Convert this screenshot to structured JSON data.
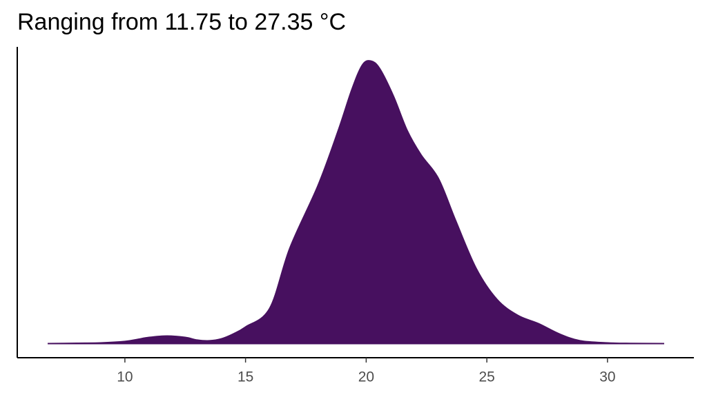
{
  "chart_data": {
    "type": "density",
    "title": "Ranging from 11.75 to 27.35 °C",
    "x": [
      6.8,
      8,
      9,
      10,
      10.5,
      11,
      11.75,
      12.5,
      13,
      13.5,
      14,
      14.5,
      15,
      16,
      16.84,
      18,
      18.84,
      19.41,
      19.84,
      20.19,
      20.56,
      21.13,
      21.7,
      22.27,
      23,
      23.7,
      24.56,
      25.42,
      26.28,
      27.14,
      28,
      28.86,
      30,
      31,
      32.35
    ],
    "values": [
      0,
      0.0002,
      0.0004,
      0.0012,
      0.0023,
      0.0035,
      0.0043,
      0.0035,
      0.002,
      0.0016,
      0.0027,
      0.0055,
      0.0094,
      0.0199,
      0.0542,
      0.0894,
      0.1206,
      0.144,
      0.1577,
      0.16,
      0.1557,
      0.1401,
      0.1206,
      0.1069,
      0.0933,
      0.0699,
      0.0425,
      0.025,
      0.016,
      0.0113,
      0.0055,
      0.0016,
      0.0004,
      0.0001,
      0
    ],
    "color": "#47105f",
    "xlim": [
      5.54,
      33.58
    ],
    "xticks": [
      10,
      15,
      20,
      25,
      30
    ],
    "ylim": [
      -0.008,
      0.168
    ]
  }
}
